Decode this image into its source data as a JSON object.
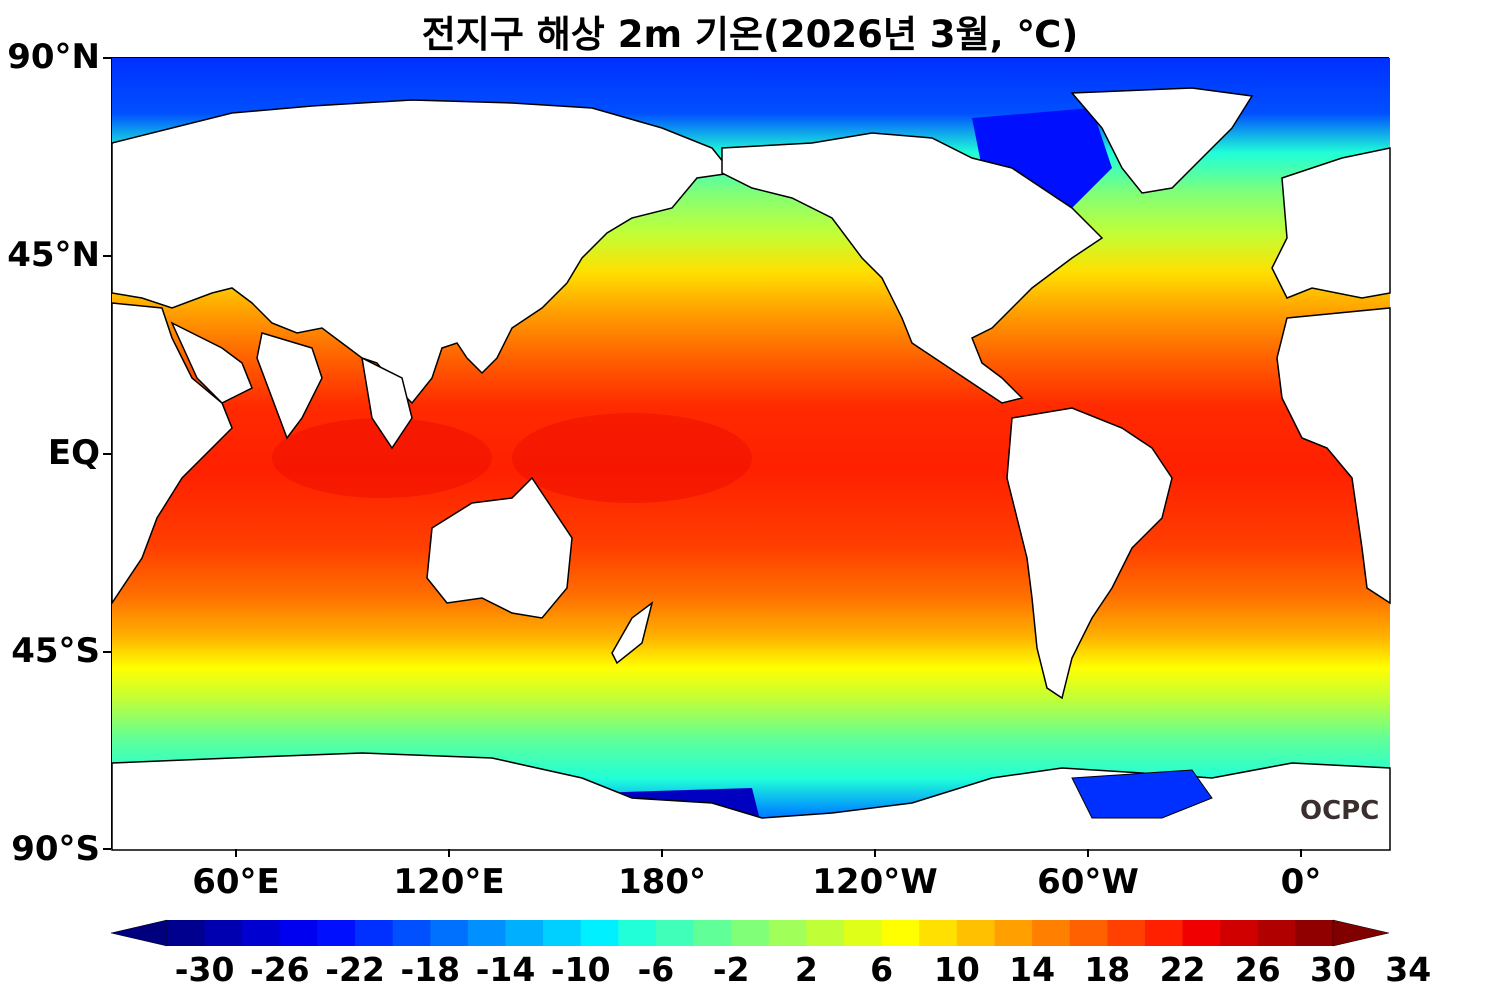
{
  "title": "전지구 해상 2m 기온(2026년 3월, ℃)",
  "latitude_labels": [
    "90°N",
    "45°N",
    "EQ",
    "45°S",
    "90°S"
  ],
  "longitude_labels": [
    "60°E",
    "120°E",
    "180°",
    "120°W",
    "60°W",
    "0°"
  ],
  "colorbar": {
    "labels": [
      "-30",
      "-26",
      "-22",
      "-18",
      "-14",
      "-10",
      "-6",
      "-2",
      "2",
      "6",
      "10",
      "14",
      "18",
      "22",
      "26",
      "30",
      "34"
    ],
    "colors": [
      "#00008f",
      "#0000b0",
      "#0000d0",
      "#0000f0",
      "#0010ff",
      "#0030ff",
      "#0050ff",
      "#0070ff",
      "#0090ff",
      "#00b0ff",
      "#00d0ff",
      "#00f0ff",
      "#20ffd8",
      "#40ffb8",
      "#60ff98",
      "#80ff78",
      "#a0ff58",
      "#c0ff38",
      "#e0ff18",
      "#ffff00",
      "#ffe000",
      "#ffc000",
      "#ffa000",
      "#ff8000",
      "#ff6000",
      "#ff4000",
      "#ff2000",
      "#f00000",
      "#d00000",
      "#b00000",
      "#900000"
    ],
    "min_arrow_color": "#00007f",
    "max_arrow_color": "#800000"
  },
  "logo_text": "OCPC",
  "colors": {
    "land": "#ffffff",
    "coastline": "#000000",
    "warm_ocean": "#ff3a00",
    "cold_ocean": "#0030ff"
  }
}
